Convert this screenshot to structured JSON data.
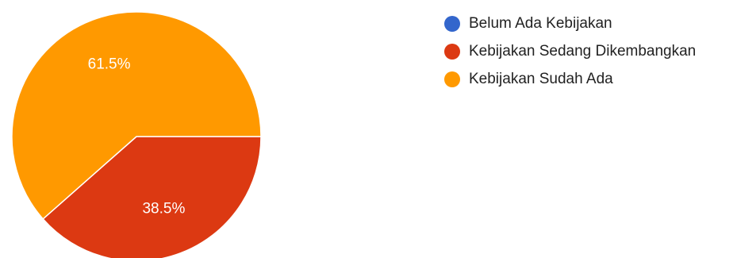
{
  "chart_data": {
    "type": "pie",
    "categories": [
      "Belum Ada Kebijakan",
      "Kebijakan Sedang Dikembangkan",
      "Kebijakan Sudah Ada"
    ],
    "values": [
      0,
      38.5,
      61.5
    ],
    "slice_labels": [
      "",
      "38.5%",
      "61.5%"
    ],
    "colors": [
      "#3366cc",
      "#dc3912",
      "#ff9900"
    ],
    "legend_position": "right"
  }
}
